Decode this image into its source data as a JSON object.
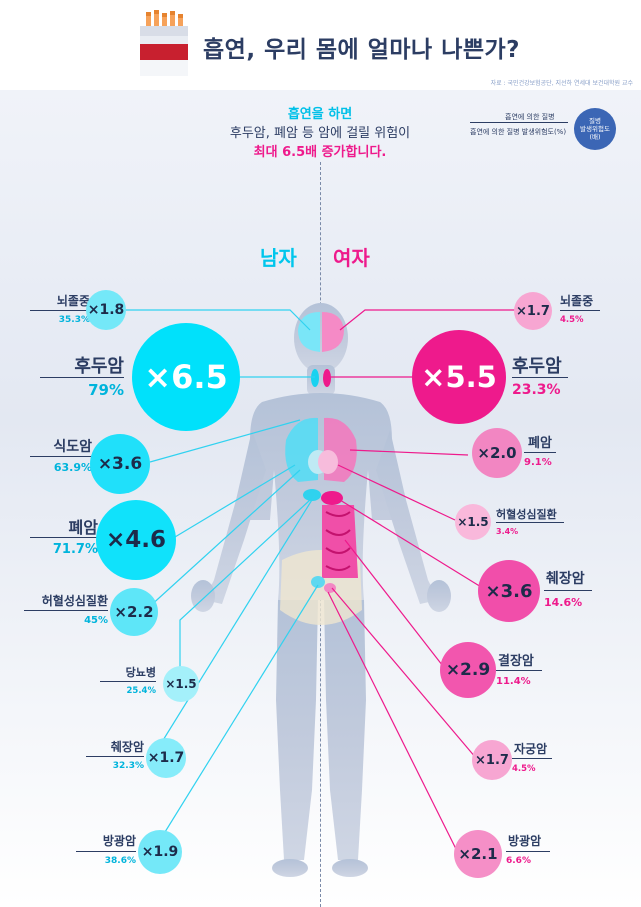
{
  "header": {
    "title": "흡연, 우리 몸에 얼마나 나쁜가?",
    "source": "자료 : 국민건강보험공단, 지선하 연세대 보건대학원 교수"
  },
  "headline": {
    "line1": "흡연을 하면",
    "line2": "후두암, 폐암 등 암에 걸릴 위험이",
    "line3": "최대 6.5배 증가합니다."
  },
  "legend": {
    "row1": "흡연에 의한 질병",
    "row2": "흡연에 의한 질병 발생위험도(%)",
    "circle_l1": "질병",
    "circle_l2": "발생위험도",
    "circle_l3": "(배)"
  },
  "genders": {
    "male": "남자",
    "female": "여자"
  },
  "male": [
    {
      "name": "뇌졸중",
      "risk": "×1.8",
      "pct": "35.3%"
    },
    {
      "name": "후두암",
      "risk": "×6.5",
      "pct": "79%"
    },
    {
      "name": "식도암",
      "risk": "×3.6",
      "pct": "63.9%"
    },
    {
      "name": "폐암",
      "risk": "×4.6",
      "pct": "71.7%"
    },
    {
      "name": "허혈성심질환",
      "risk": "×2.2",
      "pct": "45%"
    },
    {
      "name": "당뇨병",
      "risk": "×1.5",
      "pct": "25.4%"
    },
    {
      "name": "췌장암",
      "risk": "×1.7",
      "pct": "32.3%"
    },
    {
      "name": "방광암",
      "risk": "×1.9",
      "pct": "38.6%"
    }
  ],
  "female": [
    {
      "name": "뇌졸중",
      "risk": "×1.7",
      "pct": "4.5%"
    },
    {
      "name": "후두암",
      "risk": "×5.5",
      "pct": "23.3%"
    },
    {
      "name": "폐암",
      "risk": "×2.0",
      "pct": "9.1%"
    },
    {
      "name": "허혈성심질환",
      "risk": "×1.5",
      "pct": "3.4%"
    },
    {
      "name": "췌장암",
      "risk": "×3.6",
      "pct": "14.6%"
    },
    {
      "name": "결장암",
      "risk": "×2.9",
      "pct": "11.4%"
    },
    {
      "name": "자궁암",
      "risk": "×1.7",
      "pct": "4.5%"
    },
    {
      "name": "방광암",
      "risk": "×2.1",
      "pct": "6.6%"
    }
  ],
  "colors": {
    "male_accent": "#00c6ec",
    "female_accent": "#ee1a8c",
    "text_dark": "#2c3d63"
  },
  "icons": {
    "header": "cigarette-pack-icon",
    "figure": "human-body-illustration"
  }
}
